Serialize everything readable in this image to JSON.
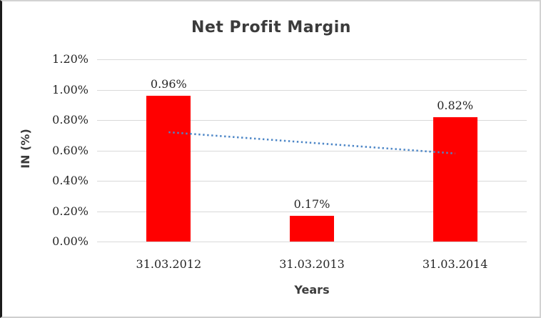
{
  "window": {
    "background": "#ffffff",
    "frame_border": "#d2d2d2",
    "frame_left_border": "#1c1c1c"
  },
  "chart_data": {
    "type": "bar",
    "title": "Net Profit Margin",
    "xlabel": "Years",
    "ylabel": "IN (%)",
    "categories": [
      "31.03.2012",
      "31.03.2013",
      "31.03.2014"
    ],
    "series": [
      {
        "name": "Net Profit Margin",
        "values": [
          0.96,
          0.17,
          0.82
        ]
      }
    ],
    "data_labels": [
      "0.96%",
      "0.17%",
      "0.82%"
    ],
    "y_ticks": [
      "1.20%",
      "1.00%",
      "0.80%",
      "0.60%",
      "0.40%",
      "0.20%",
      "0.00%"
    ],
    "ylim": [
      0,
      1.2
    ],
    "grid": true,
    "legend": "none",
    "bar_color": "#ff0000",
    "gridline_color": "#d9d9d9",
    "text_color": "#262626",
    "heading_color": "#3b3b3b",
    "trendline": {
      "type": "linear",
      "style": "dotted",
      "color": "#4e87c7",
      "start_value": 0.72,
      "end_value": 0.58
    }
  }
}
